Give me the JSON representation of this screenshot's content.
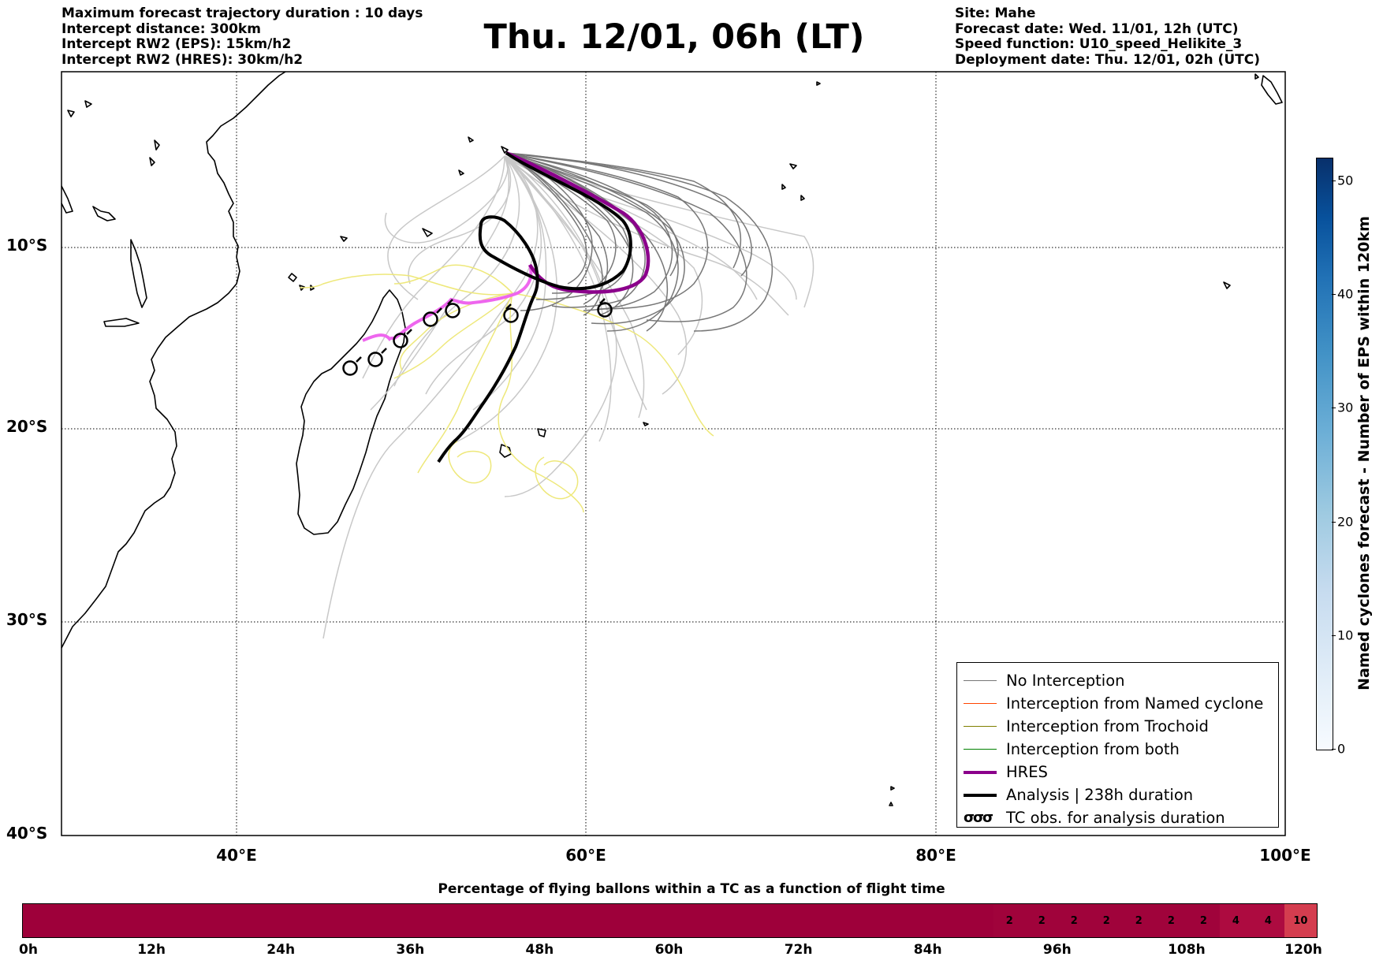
{
  "header_left": [
    "Maximum forecast trajectory duration : 10 days",
    "Intercept distance: 300km",
    "Intercept RW2 (EPS):  15km/h2",
    "Intercept RW2 (HRES): 30km/h2"
  ],
  "header_right": [
    "Site: Mahe",
    "Forecast date: Wed. 11/01, 12h (UTC)",
    "Speed function: U10_speed_Helikite_3",
    "Deployment date: Thu. 12/01, 02h (UTC)"
  ],
  "title": "Thu. 12/01, 06h (LT)",
  "map": {
    "lon_range": [
      30,
      100
    ],
    "lat_range": [
      -40,
      0
    ],
    "lat_labels": [
      "10°S",
      "20°S",
      "30°S",
      "40°S"
    ],
    "lon_labels": [
      "40°E",
      "60°E",
      "80°E",
      "100°E"
    ],
    "gridlines": true,
    "colors": {
      "no_interception": "#777777",
      "no_interception_light": "#c8c8c8",
      "yellow_tracks": "#eee87a",
      "named_cyclone": "#ff4500",
      "trochoid": "#808000",
      "both": "#008000",
      "hres": "#8b008b",
      "hres_pink": "#ee66ee",
      "analysis": "#000000"
    }
  },
  "legend": [
    {
      "label": "No Interception",
      "color": "#777777",
      "width": 1.5,
      "icon": "line"
    },
    {
      "label": "Interception from Named cyclone",
      "color": "#ff4500",
      "width": 1.5,
      "icon": "line"
    },
    {
      "label": "Interception from Trochoid",
      "color": "#808000",
      "width": 1.5,
      "icon": "line"
    },
    {
      "label": "Interception from both",
      "color": "#008000",
      "width": 1.5,
      "icon": "line"
    },
    {
      "label": "HRES",
      "color": "#8b008b",
      "width": 4,
      "icon": "line"
    },
    {
      "label": "Analysis | 238h duration",
      "color": "#000000",
      "width": 4,
      "icon": "line"
    },
    {
      "label": "TC obs. for analysis duration",
      "color": "#000000",
      "width": 2,
      "icon": "cyclone-symbols"
    }
  ],
  "colorbar_right": {
    "title": "Named cyclones forecast - Number of EPS within 120km",
    "ticks": [
      "0",
      "10",
      "20",
      "30",
      "40",
      "50"
    ],
    "range": [
      0,
      52
    ]
  },
  "time_bar": {
    "title": "Percentage of flying ballons within a TC as a function of flight time",
    "tick_labels": [
      "0h",
      "12h",
      "24h",
      "36h",
      "48h",
      "60h",
      "72h",
      "84h",
      "96h",
      "108h",
      "120h"
    ],
    "cells": [
      {
        "from_h": 0,
        "to_h": 90,
        "value": "",
        "color": "#9e003a"
      },
      {
        "from_h": 90,
        "to_h": 93,
        "value": "2",
        "color": "#a0033b"
      },
      {
        "from_h": 93,
        "to_h": 96,
        "value": "2",
        "color": "#a0033b"
      },
      {
        "from_h": 96,
        "to_h": 99,
        "value": "2",
        "color": "#a0033b"
      },
      {
        "from_h": 99,
        "to_h": 102,
        "value": "2",
        "color": "#a0033b"
      },
      {
        "from_h": 102,
        "to_h": 105,
        "value": "2",
        "color": "#a0033b"
      },
      {
        "from_h": 105,
        "to_h": 108,
        "value": "2",
        "color": "#a0033b"
      },
      {
        "from_h": 108,
        "to_h": 111,
        "value": "2",
        "color": "#a0033b"
      },
      {
        "from_h": 111,
        "to_h": 114,
        "value": "4",
        "color": "#ad0b40"
      },
      {
        "from_h": 114,
        "to_h": 117,
        "value": "4",
        "color": "#ad0b40"
      },
      {
        "from_h": 117,
        "to_h": 120,
        "value": "10",
        "color": "#d43d4f"
      }
    ]
  }
}
